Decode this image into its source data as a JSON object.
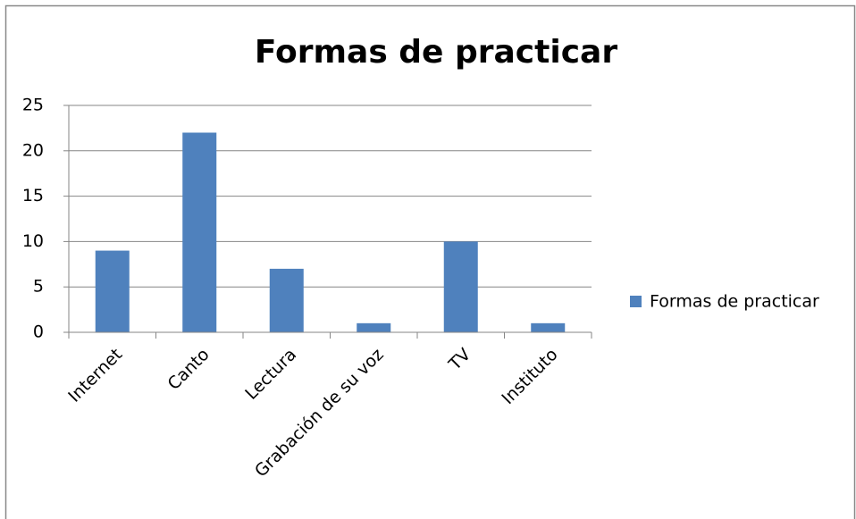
{
  "chart_data": {
    "type": "bar",
    "title": "Formas de practicar",
    "categories": [
      "Internet",
      "Canto",
      "Lectura",
      "Grabación de su voz",
      "TV",
      "Instituto"
    ],
    "series": [
      {
        "name": "Formas de practicar",
        "color": "#4f81bd",
        "values": [
          9,
          22,
          7,
          1,
          10,
          1
        ]
      }
    ],
    "ylim": [
      0,
      25
    ],
    "yticks": [
      0,
      5,
      10,
      15,
      20,
      25
    ],
    "grid": true,
    "legend": "right"
  }
}
